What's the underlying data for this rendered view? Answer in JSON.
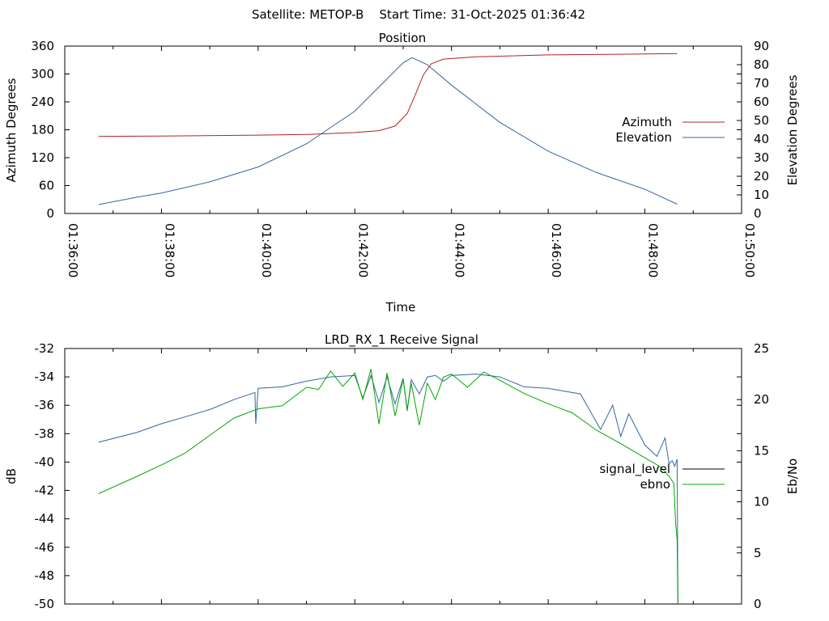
{
  "suptitle": "Satellite: METOP-B    Start Time: 31-Oct-2025 01:36:42",
  "colors": {
    "azimuth": "#b22222",
    "elevation": "#3465a4",
    "signal_level": "#3465a4",
    "ebno": "#00a800",
    "axis": "#000000"
  },
  "chart_data": [
    {
      "type": "line",
      "title": "Position",
      "xlabel": "Time",
      "ylabel": "Azimuth Degrees",
      "y2label": "Elevation Degrees",
      "xlim": [
        "01:36:00",
        "01:50:00"
      ],
      "xticks": [
        "01:36:00",
        "01:38:00",
        "01:40:00",
        "01:42:00",
        "01:44:00",
        "01:46:00",
        "01:48:00",
        "01:50:00"
      ],
      "ylim": [
        0,
        360
      ],
      "yticks": [
        "0",
        "60",
        "120",
        "180",
        "240",
        "300",
        "360"
      ],
      "y2lim": [
        0,
        90
      ],
      "y2ticks": [
        "0",
        "10",
        "20",
        "30",
        "40",
        "50",
        "60",
        "70",
        "80",
        "90"
      ],
      "grid": false,
      "legend_position": "right",
      "series": [
        {
          "name": "Azimuth",
          "axis": "y",
          "x": [
            "01:36:42",
            "01:38:00",
            "01:40:00",
            "01:41:00",
            "01:42:00",
            "01:42:30",
            "01:42:50",
            "01:43:05",
            "01:43:15",
            "01:43:25",
            "01:43:35",
            "01:43:50",
            "01:44:30",
            "01:46:00",
            "01:48:00",
            "01:48:40"
          ],
          "values": [
            166,
            166.5,
            168.5,
            170,
            174,
            178,
            188,
            215,
            255,
            298,
            322,
            332,
            337,
            341,
            343,
            344
          ]
        },
        {
          "name": "Elevation",
          "axis": "y2",
          "x": [
            "01:36:42",
            "01:37:30",
            "01:38:00",
            "01:39:00",
            "01:40:00",
            "01:41:00",
            "01:42:00",
            "01:42:30",
            "01:43:00",
            "01:43:11",
            "01:43:30",
            "01:44:00",
            "01:45:00",
            "01:46:00",
            "01:47:00",
            "01:48:00",
            "01:48:40"
          ],
          "values": [
            4.8,
            8.8,
            11,
            17,
            25,
            37.5,
            55,
            68,
            81,
            83.8,
            80,
            69,
            49,
            33.5,
            22,
            13,
            5
          ]
        }
      ]
    },
    {
      "type": "line",
      "title": "LRD_RX_1 Receive Signal",
      "ylabel": "dB",
      "y2label": "Eb/No",
      "xlim": [
        "01:36:00",
        "01:50:00"
      ],
      "ylim": [
        -50,
        -32
      ],
      "yticks": [
        "-50",
        "-48",
        "-46",
        "-44",
        "-42",
        "-40",
        "-38",
        "-36",
        "-34",
        "-32"
      ],
      "y2lim": [
        0,
        25
      ],
      "y2ticks": [
        "0",
        "5",
        "10",
        "15",
        "20",
        "25"
      ],
      "grid": false,
      "legend_position": "right",
      "series": [
        {
          "name": "signal_level",
          "axis": "y",
          "legend_color": "#000000",
          "x": [
            "01:36:42",
            "01:37:30",
            "01:38:00",
            "01:38:30",
            "01:39:00",
            "01:39:30",
            "01:39:56",
            "01:39:57",
            "01:40:00",
            "01:40:30",
            "01:41:00",
            "01:41:30",
            "01:42:00",
            "01:42:10",
            "01:42:20",
            "01:42:30",
            "01:42:40",
            "01:42:50",
            "01:43:00",
            "01:43:05",
            "01:43:10",
            "01:43:20",
            "01:43:30",
            "01:43:40",
            "01:43:50",
            "01:44:00",
            "01:44:30",
            "01:45:00",
            "01:45:30",
            "01:46:00",
            "01:46:40",
            "01:47:05",
            "01:47:20",
            "01:47:30",
            "01:47:40",
            "01:48:00",
            "01:48:15",
            "01:48:25",
            "01:48:30",
            "01:48:34",
            "01:48:37",
            "01:48:40",
            "01:48:41"
          ],
          "values": [
            -38.6,
            -37.9,
            -37.3,
            -36.8,
            -36.3,
            -35.6,
            -35.1,
            -37.3,
            -34.8,
            -34.7,
            -34.3,
            -34.0,
            -33.9,
            -35.5,
            -33.9,
            -35.8,
            -34.0,
            -35.9,
            -34.1,
            -36.4,
            -34.2,
            -35.2,
            -34.0,
            -33.9,
            -34.3,
            -33.9,
            -33.8,
            -34.0,
            -34.7,
            -34.8,
            -35.2,
            -37.7,
            -36.0,
            -38.2,
            -36.6,
            -38.8,
            -39.6,
            -38.3,
            -40.1,
            -39.9,
            -40.3,
            -39.8,
            -50.0
          ]
        },
        {
          "name": "ebno",
          "axis": "y2",
          "x": [
            "01:36:42",
            "01:37:30",
            "01:38:00",
            "01:38:30",
            "01:39:00",
            "01:39:30",
            "01:40:00",
            "01:40:30",
            "01:41:00",
            "01:41:15",
            "01:41:30",
            "01:41:45",
            "01:42:00",
            "01:42:10",
            "01:42:20",
            "01:42:30",
            "01:42:40",
            "01:42:50",
            "01:43:00",
            "01:43:05",
            "01:43:10",
            "01:43:20",
            "01:43:30",
            "01:43:40",
            "01:43:50",
            "01:44:00",
            "01:44:20",
            "01:44:40",
            "01:45:00",
            "01:45:30",
            "01:46:00",
            "01:46:30",
            "01:47:00",
            "01:47:30",
            "01:48:00",
            "01:48:20",
            "01:48:30",
            "01:48:36",
            "01:48:38",
            "01:48:40",
            "01:48:41"
          ],
          "values": [
            10.8,
            12.5,
            13.6,
            14.8,
            16.5,
            18.2,
            19.1,
            19.4,
            21.2,
            21.0,
            22.8,
            21.3,
            22.6,
            20.0,
            23.0,
            17.6,
            22.6,
            18.4,
            22.0,
            19.0,
            21.6,
            17.5,
            21.6,
            20.0,
            22.2,
            22.5,
            21.2,
            22.7,
            21.9,
            20.6,
            19.6,
            18.7,
            17.0,
            15.7,
            14.3,
            13.4,
            12.5,
            11.8,
            8.0,
            6.3,
            0.0
          ]
        }
      ]
    }
  ]
}
